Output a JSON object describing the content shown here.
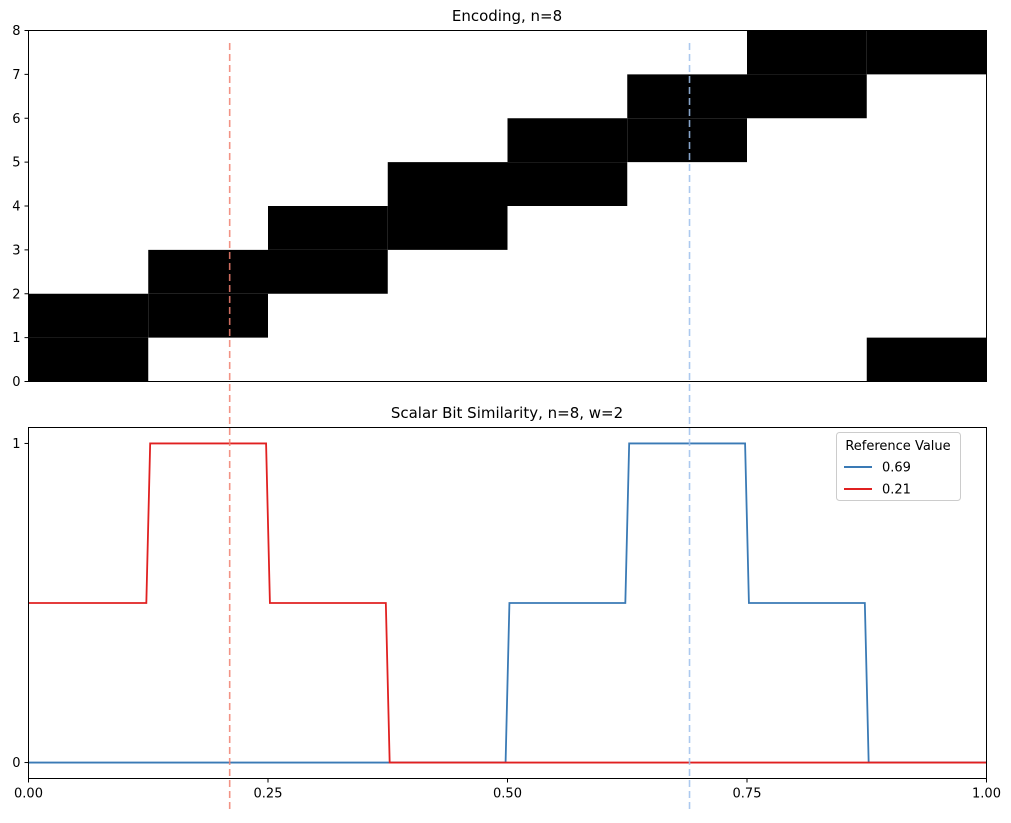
{
  "chart_data": [
    {
      "type": "heatmap",
      "title": "Encoding, n=8",
      "xlim": [
        0.0,
        1.0
      ],
      "ylim": [
        0,
        8
      ],
      "yticks": [
        "0",
        "1",
        "2",
        "3",
        "4",
        "5",
        "6",
        "7",
        "8"
      ],
      "x_bins": [
        0.0,
        0.125,
        0.25,
        0.375,
        0.5,
        0.625,
        0.75,
        0.875,
        1.0
      ],
      "active_bits": [
        [
          0,
          1
        ],
        [
          1,
          2
        ],
        [
          2,
          3
        ],
        [
          3,
          4
        ],
        [
          4,
          5
        ],
        [
          5,
          6
        ],
        [
          6,
          7
        ],
        [
          7,
          0
        ]
      ],
      "active_color": "#000000",
      "inactive_color": "#ffffff"
    },
    {
      "type": "line",
      "title": "Scalar Bit Similarity, n=8, w=2",
      "xlim": [
        0.0,
        1.0
      ],
      "ylim": [
        -0.05,
        1.05
      ],
      "xticks": [
        "0.00",
        "0.25",
        "0.50",
        "0.75",
        "1.00"
      ],
      "yticks": [
        "0",
        "1"
      ],
      "legend_title": "Reference Value",
      "legend_position": "top-right",
      "series": [
        {
          "name": "0.69",
          "color": "#3a7ab5",
          "x": [
            0.0,
            0.498,
            0.502,
            0.623,
            0.627,
            0.748,
            0.752,
            0.873,
            0.877,
            1.0
          ],
          "y": [
            0,
            0,
            0.5,
            0.5,
            1,
            1,
            0.5,
            0.5,
            0,
            0
          ]
        },
        {
          "name": "0.21",
          "color": "#e02020",
          "x": [
            0.0,
            0.123,
            0.127,
            0.248,
            0.252,
            0.373,
            0.377,
            0.873,
            0.877,
            1.0
          ],
          "y": [
            0.5,
            0.5,
            1,
            1,
            0.5,
            0.5,
            0,
            0,
            0,
            0
          ]
        }
      ],
      "reference_lines": [
        {
          "x": 0.21,
          "color": "#f08070"
        },
        {
          "x": 0.69,
          "color": "#9ec0ec"
        }
      ]
    }
  ]
}
